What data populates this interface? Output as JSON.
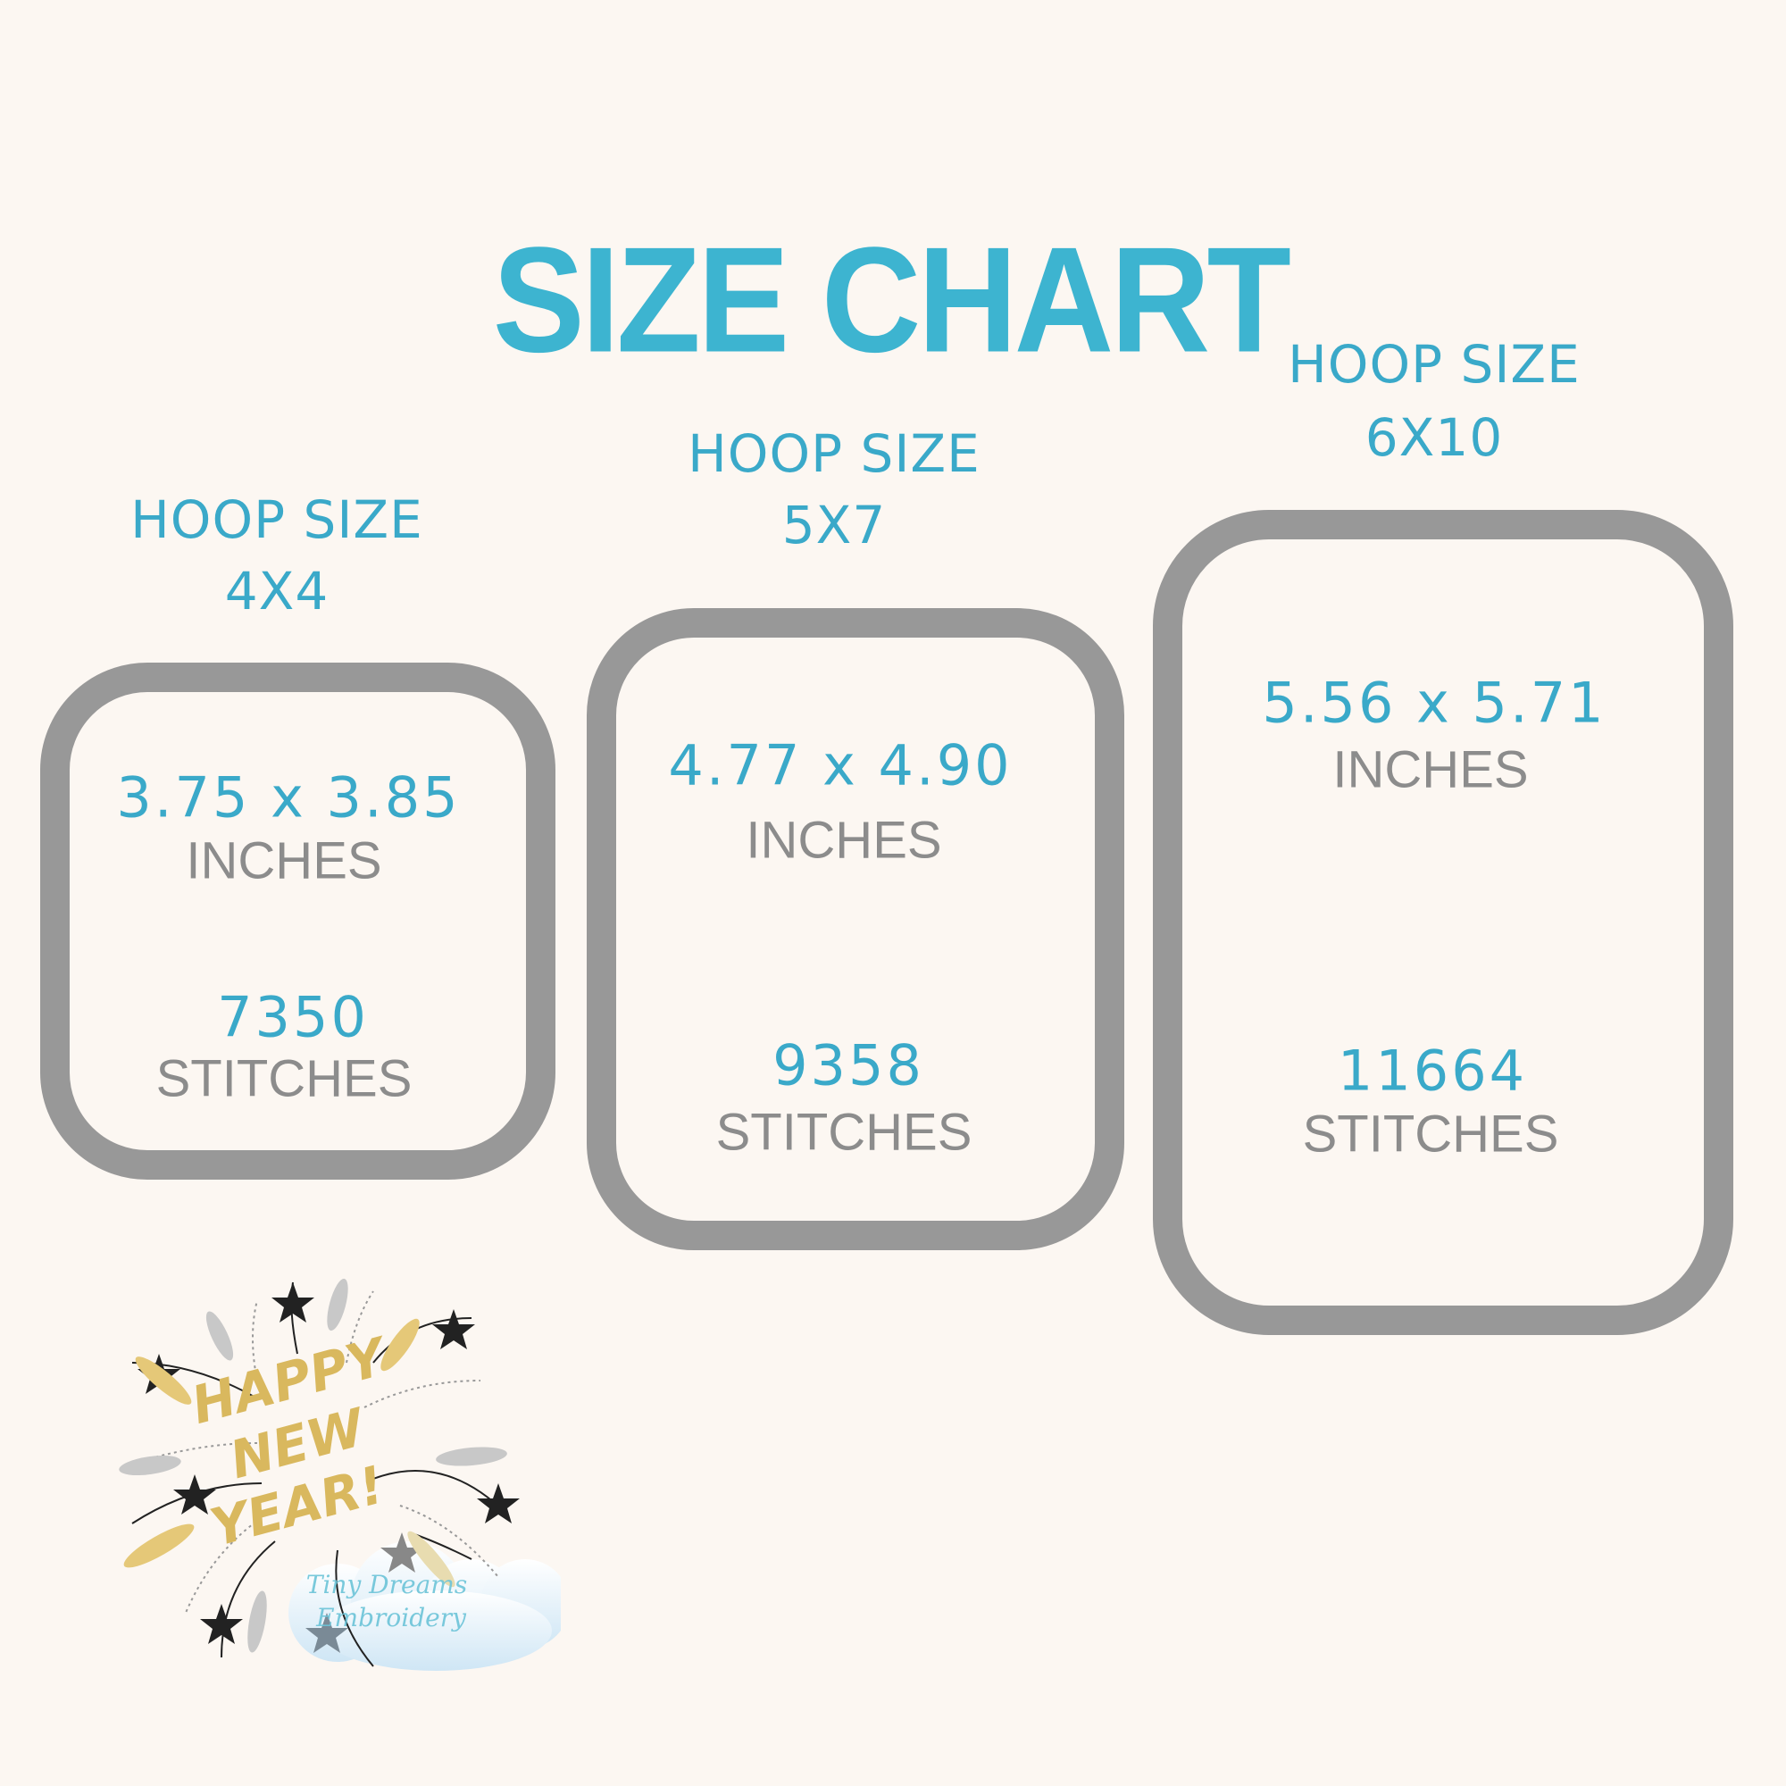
{
  "title": "SIZE CHART",
  "colors": {
    "accent": "#3db4d0",
    "frame": "#989898",
    "label": "#8c8c8c",
    "background": "#fcf7f2"
  },
  "hoops": [
    {
      "hoop_label": "HOOP SIZE",
      "hoop_size": "4X4",
      "dimensions": "3.75 x 3.85",
      "dim_unit": "INCHES",
      "stitches": "7350",
      "stitch_unit": "STITCHES"
    },
    {
      "hoop_label": "HOOP SIZE",
      "hoop_size": "5X7",
      "dimensions": "4.77 x 4.90",
      "dim_unit": "INCHES",
      "stitches": "9358",
      "stitch_unit": "STITCHES"
    },
    {
      "hoop_label": "HOOP SIZE",
      "hoop_size": "6X10",
      "dimensions": "5.56 x 5.71",
      "dim_unit": "INCHES",
      "stitches": "11664",
      "stitch_unit": "STITCHES"
    }
  ],
  "design": {
    "text_lines": [
      "HAPPY",
      "NEW",
      "YEAR!"
    ]
  },
  "watermark": {
    "line1": "Tiny Dreams",
    "line2": "Embroidery"
  }
}
